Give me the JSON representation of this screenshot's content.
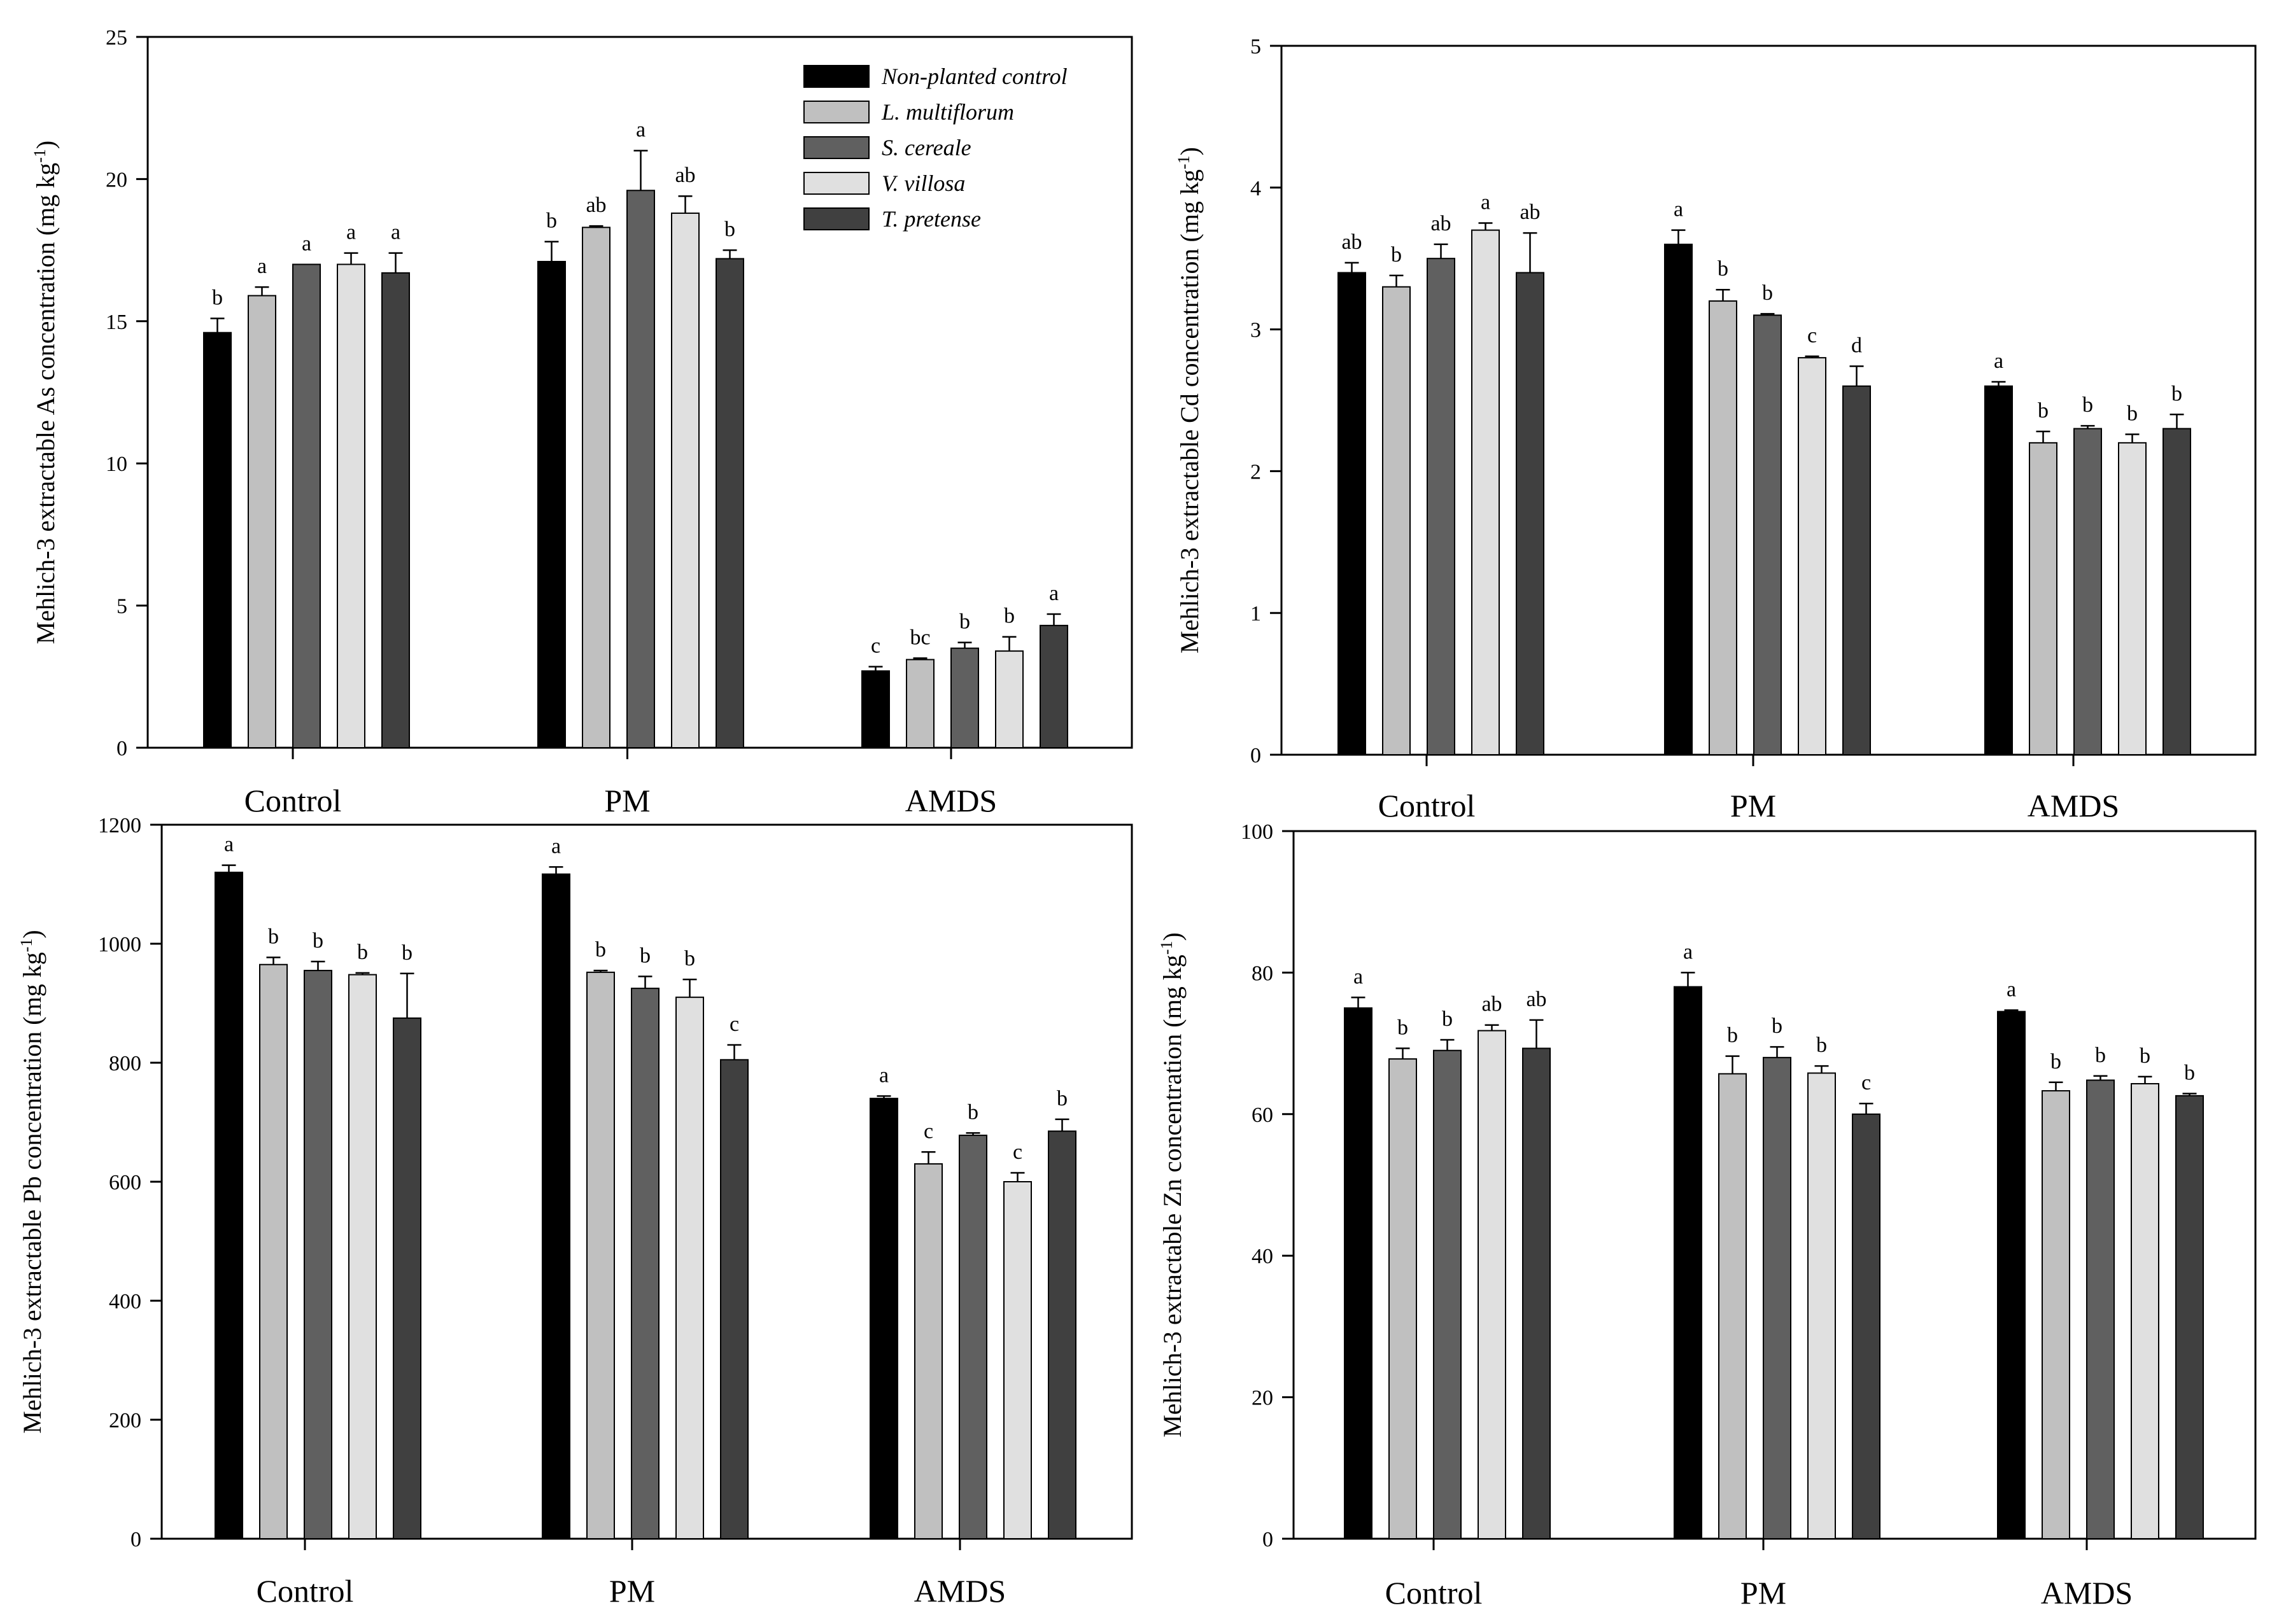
{
  "colors": {
    "non_planted": "#000000",
    "l_multiflorum": "#c0c0c0",
    "s_cereale": "#606060",
    "v_villosa": "#e0e0e0",
    "t_pretense": "#404040"
  },
  "legend": {
    "items": [
      "Non-planted control",
      "L. multiflorum",
      "S. cereale",
      "V. villosa",
      "T. pretense"
    ]
  },
  "chart_data": [
    {
      "type": "bar",
      "ylabel_main": "Mehlich-3 extractable As concentration (mg kg",
      "ylabel_sup": "-1",
      "ylabel_end": ")",
      "ylim": [
        0,
        25
      ],
      "yticks": [
        "0",
        "5",
        "10",
        "15",
        "20",
        "25"
      ],
      "categories": [
        "Control",
        "PM",
        "AMDS"
      ],
      "legend": "top-right",
      "series": [
        {
          "name": "Non-planted control",
          "values": [
            14.6,
            17.1,
            2.7
          ],
          "errors": [
            0.5,
            0.7,
            0.15
          ],
          "labels": [
            "b",
            "b",
            "c"
          ]
        },
        {
          "name": "L. multiflorum",
          "values": [
            15.9,
            18.3,
            3.1
          ],
          "errors": [
            0.3,
            0.05,
            0.05
          ],
          "labels": [
            "a",
            "ab",
            "bc"
          ]
        },
        {
          "name": "S. cereale",
          "values": [
            17.0,
            19.6,
            3.5
          ],
          "errors": [
            0.0,
            1.4,
            0.2
          ],
          "labels": [
            "a",
            "a",
            "b"
          ]
        },
        {
          "name": "V. villosa",
          "values": [
            17.0,
            18.8,
            3.4
          ],
          "errors": [
            0.4,
            0.6,
            0.5
          ],
          "labels": [
            "a",
            "ab",
            "b"
          ]
        },
        {
          "name": "T. pretense",
          "values": [
            16.7,
            17.2,
            4.3
          ],
          "errors": [
            0.7,
            0.3,
            0.4
          ],
          "labels": [
            "a",
            "b",
            "a"
          ]
        }
      ]
    },
    {
      "type": "bar",
      "ylabel_main": "Mehlich-3 extractable Cd concentration (mg kg",
      "ylabel_sup": "-1",
      "ylabel_end": ")",
      "ylim": [
        0,
        5
      ],
      "yticks": [
        "0",
        "1",
        "2",
        "3",
        "4",
        "5"
      ],
      "categories": [
        "Control",
        "PM",
        "AMDS"
      ],
      "series": [
        {
          "name": "Non-planted control",
          "values": [
            3.4,
            3.6,
            2.6
          ],
          "errors": [
            0.07,
            0.1,
            0.03
          ],
          "labels": [
            "ab",
            "a",
            "a"
          ]
        },
        {
          "name": "L. multiflorum",
          "values": [
            3.3,
            3.2,
            2.2
          ],
          "errors": [
            0.08,
            0.08,
            0.08
          ],
          "labels": [
            "b",
            "b",
            "b"
          ]
        },
        {
          "name": "S. cereale",
          "values": [
            3.5,
            3.1,
            2.3
          ],
          "errors": [
            0.1,
            0.01,
            0.02
          ],
          "labels": [
            "ab",
            "b",
            "b"
          ]
        },
        {
          "name": "V. villosa",
          "values": [
            3.7,
            2.8,
            2.2
          ],
          "errors": [
            0.05,
            0.01,
            0.06
          ],
          "labels": [
            "a",
            "c",
            "b"
          ]
        },
        {
          "name": "T. pretense",
          "values": [
            3.4,
            2.6,
            2.3
          ],
          "errors": [
            0.28,
            0.14,
            0.1
          ],
          "labels": [
            "ab",
            "d",
            "b"
          ]
        }
      ]
    },
    {
      "type": "bar",
      "ylabel_main": "Mehlich-3 extractable Pb concentration (mg kg",
      "ylabel_sup": "-1",
      "ylabel_end": ")",
      "ylim": [
        0,
        1200
      ],
      "yticks": [
        "0",
        "200",
        "400",
        "600",
        "800",
        "1000",
        "1200"
      ],
      "categories": [
        "Control",
        "PM",
        "AMDS"
      ],
      "series": [
        {
          "name": "Non-planted control",
          "values": [
            1120,
            1117,
            740
          ],
          "errors": [
            12,
            12,
            4
          ],
          "labels": [
            "a",
            "a",
            "a"
          ]
        },
        {
          "name": "L. multiflorum",
          "values": [
            965,
            952,
            630
          ],
          "errors": [
            12,
            3,
            20
          ],
          "labels": [
            "b",
            "b",
            "c"
          ]
        },
        {
          "name": "S. cereale",
          "values": [
            955,
            925,
            678
          ],
          "errors": [
            15,
            20,
            4
          ],
          "labels": [
            "b",
            "b",
            "b"
          ]
        },
        {
          "name": "V. villosa",
          "values": [
            948,
            910,
            600
          ],
          "errors": [
            3,
            30,
            15
          ],
          "labels": [
            "b",
            "b",
            "c"
          ]
        },
        {
          "name": "T. pretense",
          "values": [
            875,
            805,
            685
          ],
          "errors": [
            75,
            25,
            20
          ],
          "labels": [
            "b",
            "c",
            "b"
          ]
        }
      ]
    },
    {
      "type": "bar",
      "ylabel_main": "Mehlich-3 extractable Zn concentration (mg kg",
      "ylabel_sup": "-1",
      "ylabel_end": ")",
      "ylim": [
        0,
        100
      ],
      "yticks": [
        "0",
        "20",
        "40",
        "60",
        "80",
        "100"
      ],
      "categories": [
        "Control",
        "PM",
        "AMDS"
      ],
      "series": [
        {
          "name": "Non-planted control",
          "values": [
            75,
            78,
            74.5
          ],
          "errors": [
            1.5,
            2,
            0.2
          ],
          "labels": [
            "a",
            "a",
            "a"
          ]
        },
        {
          "name": "L. multiflorum",
          "values": [
            67.8,
            65.7,
            63.3
          ],
          "errors": [
            1.5,
            2.5,
            1.2
          ],
          "labels": [
            "b",
            "b",
            "b"
          ]
        },
        {
          "name": "S. cereale",
          "values": [
            69,
            68,
            64.8
          ],
          "errors": [
            1.5,
            1.5,
            0.6
          ],
          "labels": [
            "b",
            "b",
            "b"
          ]
        },
        {
          "name": "V. villosa",
          "values": [
            71.8,
            65.8,
            64.3
          ],
          "errors": [
            0.8,
            1,
            1
          ],
          "labels": [
            "ab",
            "b",
            "b"
          ]
        },
        {
          "name": "T. pretense",
          "values": [
            69.3,
            60,
            62.6
          ],
          "errors": [
            4,
            1.5,
            0.3
          ],
          "labels": [
            "ab",
            "c",
            "b"
          ]
        }
      ]
    }
  ]
}
